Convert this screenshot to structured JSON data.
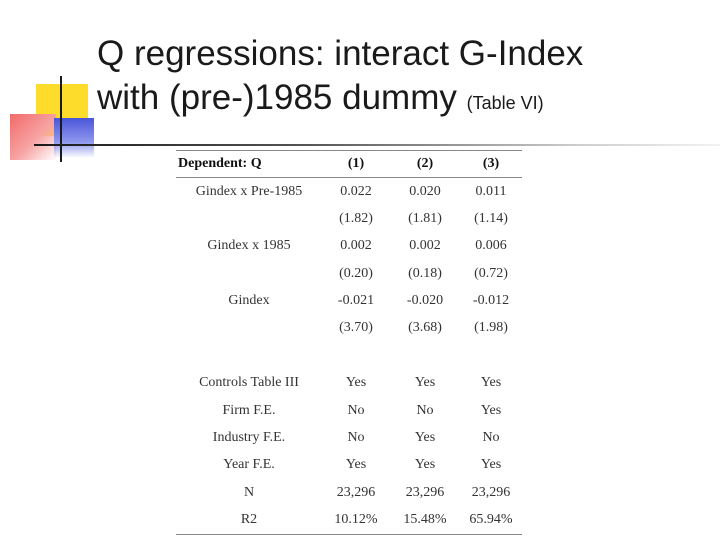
{
  "slide": {
    "title_line1": "Q regressions: interact G-Index",
    "title_line2": "with (pre-)1985 dummy",
    "title_note": "(Table VI)"
  },
  "table": {
    "header": [
      "Dependent: Q",
      "(1)",
      "(2)",
      "(3)"
    ],
    "rows": [
      [
        "Gindex x Pre-1985",
        "0.022",
        "0.020",
        "0.011"
      ],
      [
        "",
        "(1.82)",
        "(1.81)",
        "(1.14)"
      ],
      [
        "Gindex x 1985",
        "0.002",
        "0.002",
        "0.006"
      ],
      [
        "",
        "(0.20)",
        "(0.18)",
        "(0.72)"
      ],
      [
        "Gindex",
        "-0.021",
        "-0.020",
        "-0.012"
      ],
      [
        "",
        "(3.70)",
        "(3.68)",
        "(1.98)"
      ],
      [
        "",
        "",
        "",
        ""
      ],
      [
        "Controls Table III",
        "Yes",
        "Yes",
        "Yes"
      ],
      [
        "Firm F.E.",
        "No",
        "No",
        "Yes"
      ],
      [
        "Industry F.E.",
        "No",
        "Yes",
        "No"
      ],
      [
        "Year F.E.",
        "Yes",
        "Yes",
        "Yes"
      ],
      [
        "N",
        "23,296",
        "23,296",
        "23,296"
      ],
      [
        "R2",
        "10.12%",
        "15.48%",
        "65.94%"
      ]
    ]
  }
}
